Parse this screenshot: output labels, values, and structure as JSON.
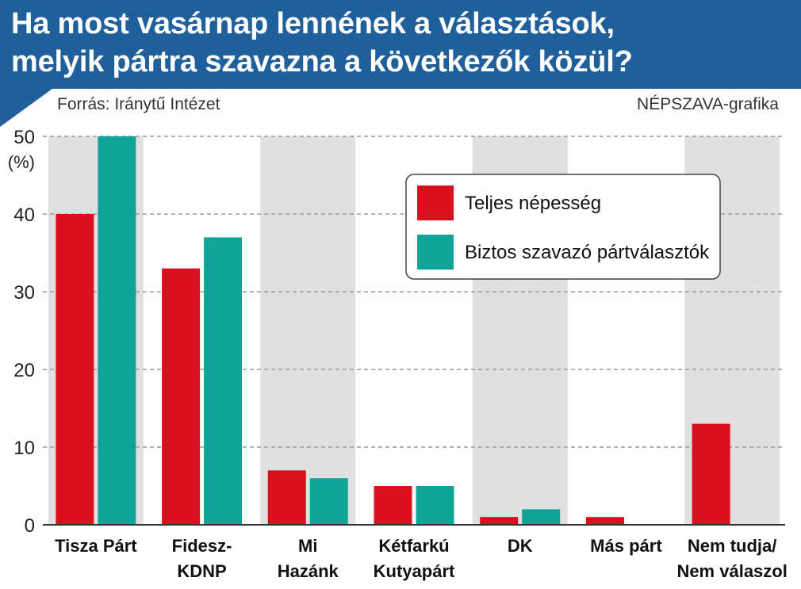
{
  "header": {
    "title_line1": "Ha most vasárnap lennének a választások,",
    "title_line2": "melyik pártra szavazna a következők közül?"
  },
  "source": "Forrás: Iránytű Intézet",
  "credit": "NÉPSZAVA-grafika",
  "colors": {
    "header_bg": "#1f5f9c",
    "series1": "#d9101e",
    "series2": "#0fa498",
    "band": "#e0e0e0"
  },
  "chart_data": {
    "type": "bar",
    "ylabel": "(%)",
    "ylim": [
      0,
      50
    ],
    "yticks": [
      0,
      10,
      20,
      30,
      40,
      50
    ],
    "grid": "dashed horizontal",
    "legend_position": "top-right",
    "categories": [
      [
        "Tisza Párt"
      ],
      [
        "Fidesz-",
        "KDNP"
      ],
      [
        "Mi",
        "Hazánk"
      ],
      [
        "Kétfarkú",
        "Kutyapárt"
      ],
      [
        "DK"
      ],
      [
        "Más párt"
      ],
      [
        "Nem tudja/",
        "Nem válaszol"
      ]
    ],
    "series": [
      {
        "name": "Teljes népesség",
        "color": "#d9101e",
        "values": [
          40,
          33,
          7,
          5,
          1,
          1,
          13
        ]
      },
      {
        "name": "Biztos szavazó pártválasztók",
        "color": "#0fa498",
        "values": [
          50,
          37,
          6,
          5,
          2,
          null,
          null
        ]
      }
    ]
  }
}
